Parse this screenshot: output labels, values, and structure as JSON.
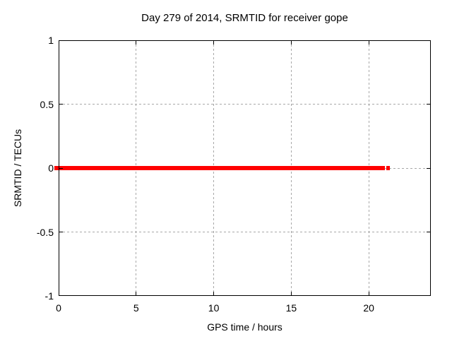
{
  "chart_data": {
    "type": "line",
    "title": "Day 279 of 2014, SRMTID for receiver gope",
    "xlabel": "GPS time / hours",
    "ylabel": "SRMTID / TECUs",
    "xlim": [
      0,
      24
    ],
    "ylim": [
      -1,
      1
    ],
    "xticks": [
      0,
      5,
      10,
      15,
      20
    ],
    "yticks": [
      -1,
      -0.5,
      0,
      0.5,
      1
    ],
    "grid": true,
    "legend": "none",
    "series": [
      {
        "name": "SRMTID",
        "color": "#ff0000",
        "linewidth": 6,
        "y_value": 0,
        "segments": [
          {
            "x": [
              -0.27,
              21.05
            ],
            "y": [
              0,
              0
            ]
          },
          {
            "x": [
              21.15,
              21.35
            ],
            "y": [
              0,
              0
            ]
          }
        ]
      }
    ],
    "colors": {
      "background": "#ffffff",
      "border": "#000000",
      "grid": "#a8a8a8",
      "text": "#000000"
    }
  }
}
